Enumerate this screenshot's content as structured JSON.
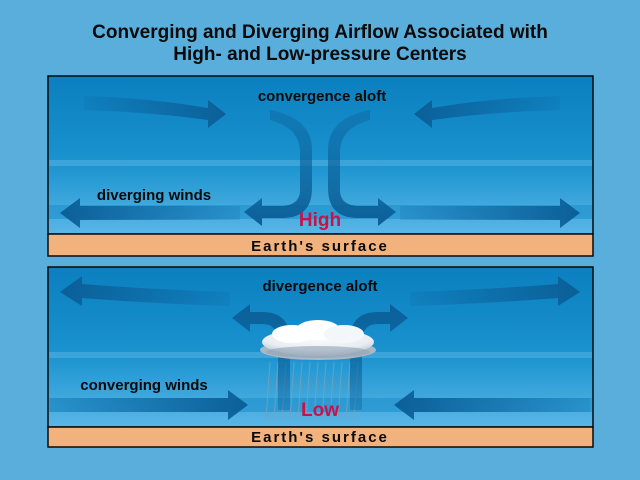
{
  "title": {
    "line1": "Converging and Diverging Airflow Associated with",
    "line2": "High- and Low-pressure Centers"
  },
  "high_panel": {
    "aloft_label": "convergence aloft",
    "surface_wind_label": "diverging winds",
    "center_label": "High",
    "surface_label": "Earth's surface"
  },
  "low_panel": {
    "aloft_label": "divergence aloft",
    "surface_wind_label": "converging winds",
    "center_label": "Low",
    "surface_label": "Earth's surface"
  },
  "colors": {
    "background": "#5aaedc",
    "sky_top": "#0b7fbf",
    "sky_bottom": "#5ab6e6",
    "arrow": "#0b5f98",
    "surface": "#f2b27e",
    "pressure_label": "#c8124a"
  }
}
